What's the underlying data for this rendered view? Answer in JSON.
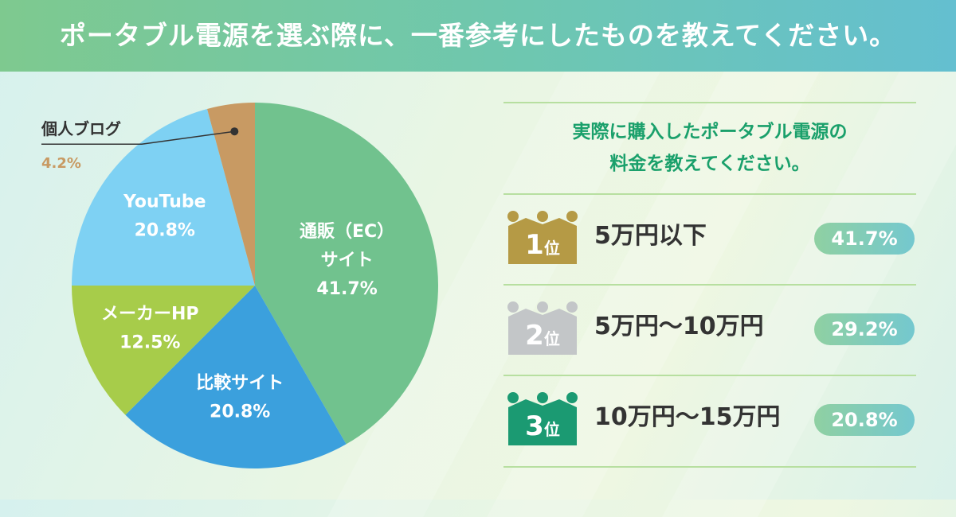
{
  "header": {
    "title": "ポータブル電源を選ぶ際に、一番参考にしたものを教えてください。"
  },
  "chart_data": {
    "type": "pie",
    "title": "ポータブル電源を選ぶ際に、一番参考にしたものを教えてください。",
    "unit": "%",
    "slices": [
      {
        "label_lines": [
          "通販（EC）",
          "サイト"
        ],
        "value": 41.7,
        "value_label": "41.7%",
        "color": "#71c28e"
      },
      {
        "label_lines": [
          "比較サイト"
        ],
        "value": 20.8,
        "value_label": "20.8%",
        "color": "#3ba0dd"
      },
      {
        "label_lines": [
          "メーカーHP"
        ],
        "value": 12.5,
        "value_label": "12.5%",
        "color": "#a7cc4a"
      },
      {
        "label_lines": [
          "YouTube"
        ],
        "value": 20.8,
        "value_label": "20.8%",
        "color": "#7ed1f3"
      },
      {
        "label_lines": [
          "個人ブログ"
        ],
        "value": 4.2,
        "value_label": "4.2%",
        "color": "#c89a63"
      }
    ]
  },
  "ranking": {
    "title_lines": [
      "実際に購入したポータブル電源の",
      "料金を教えてください。"
    ],
    "items": [
      {
        "num": "1",
        "pos": "位",
        "label": "5万円以下",
        "pct": "41.7%",
        "value": 41.7,
        "color": "#b59a45"
      },
      {
        "num": "2",
        "pos": "位",
        "label": "5万円～10万円",
        "pct": "29.2%",
        "value": 29.2,
        "color": "#c3c6c8"
      },
      {
        "num": "3",
        "pos": "位",
        "label": "10万円～15万円",
        "pct": "20.8%",
        "value": 20.8,
        "color": "#1b9a72"
      }
    ]
  }
}
